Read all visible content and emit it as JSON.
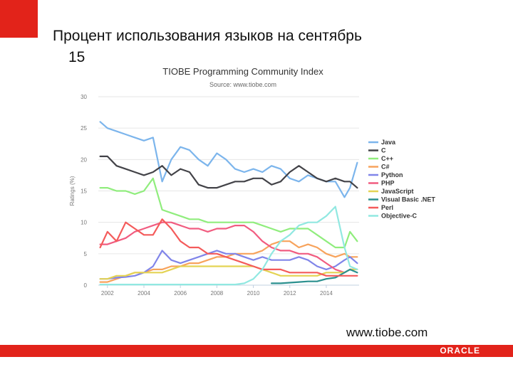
{
  "slide": {
    "title_line1": "Процент использования языков на сентябрь",
    "title_line2": "15",
    "source": "www.tiobe.com",
    "logo_text": "ORACLE"
  },
  "colors": {
    "brand_red": "#e2231a"
  },
  "chart_data": {
    "type": "line",
    "title": "TIOBE Programming Community Index",
    "subtitle": "Source: www.tiobe.com",
    "ylabel": "Ratings (%)",
    "xlabel": "",
    "ylim": [
      0,
      30
    ],
    "xlim": [
      2001.5,
      2015.8
    ],
    "y_ticks": [
      "0",
      "5",
      "10",
      "15",
      "20",
      "25",
      "30"
    ],
    "x_ticks": [
      "2002",
      "2004",
      "2006",
      "2008",
      "2010",
      "2012",
      "2014"
    ],
    "grid": true,
    "legend_position": "right",
    "series": [
      {
        "name": "Java",
        "color": "#7cb5ec",
        "x": [
          2001.6,
          2002,
          2002.5,
          2003,
          2003.5,
          2004,
          2004.5,
          2005,
          2005.5,
          2006,
          2006.5,
          2007,
          2007.5,
          2008,
          2008.5,
          2009,
          2009.5,
          2010,
          2010.5,
          2011,
          2011.5,
          2012,
          2012.5,
          2013,
          2013.5,
          2014,
          2014.5,
          2015,
          2015.3,
          2015.7
        ],
        "values": [
          26,
          25,
          24.5,
          24,
          23.5,
          23,
          23.5,
          16.5,
          20,
          22,
          21.5,
          20,
          19,
          21,
          20,
          18.5,
          18,
          18.5,
          18,
          19,
          18.5,
          17,
          16.5,
          17.5,
          17,
          16.5,
          16.5,
          14,
          15.5,
          19.5
        ]
      },
      {
        "name": "C",
        "color": "#434348",
        "x": [
          2001.6,
          2002,
          2002.5,
          2003,
          2003.5,
          2004,
          2004.5,
          2005,
          2005.5,
          2006,
          2006.5,
          2007,
          2007.5,
          2008,
          2008.5,
          2009,
          2009.5,
          2010,
          2010.5,
          2011,
          2011.5,
          2012,
          2012.5,
          2013,
          2013.5,
          2014,
          2014.5,
          2015,
          2015.3,
          2015.7
        ],
        "values": [
          20.5,
          20.5,
          19,
          18.5,
          18,
          17.5,
          18,
          19,
          17.5,
          18.5,
          18,
          16,
          15.5,
          15.5,
          16,
          16.5,
          16.5,
          17,
          17,
          16,
          16.5,
          18,
          19,
          18,
          17,
          16.5,
          17,
          16.5,
          16.5,
          15.5
        ]
      },
      {
        "name": "C++",
        "color": "#90ed7d",
        "x": [
          2001.6,
          2002,
          2002.5,
          2003,
          2003.5,
          2004,
          2004.5,
          2005,
          2005.5,
          2006,
          2006.5,
          2007,
          2007.5,
          2008,
          2008.5,
          2009,
          2009.5,
          2010,
          2010.5,
          2011,
          2011.5,
          2012,
          2012.5,
          2013,
          2013.5,
          2014,
          2014.5,
          2015,
          2015.3,
          2015.7
        ],
        "values": [
          15.5,
          15.5,
          15,
          15,
          14.5,
          15,
          17,
          12,
          11.5,
          11,
          10.5,
          10.5,
          10,
          10,
          10,
          10,
          10,
          10,
          9.5,
          9,
          8.5,
          9,
          9,
          9,
          8,
          7,
          6,
          6,
          8.5,
          7
        ]
      },
      {
        "name": "C#",
        "color": "#f7a35c",
        "x": [
          2001.6,
          2002,
          2002.5,
          2003,
          2003.5,
          2004,
          2004.5,
          2005,
          2005.5,
          2006,
          2006.5,
          2007,
          2007.5,
          2008,
          2008.5,
          2009,
          2009.5,
          2010,
          2010.5,
          2011,
          2011.5,
          2012,
          2012.5,
          2013,
          2013.5,
          2014,
          2014.5,
          2015,
          2015.3,
          2015.7
        ],
        "values": [
          0.5,
          0.5,
          1,
          1.5,
          2,
          2,
          2.5,
          2.5,
          3,
          3,
          3.5,
          3.5,
          4,
          4.5,
          4.5,
          5,
          5,
          5,
          5.5,
          6.5,
          7,
          7,
          6,
          6.5,
          6,
          5,
          4.5,
          5,
          4.5,
          4.5
        ]
      },
      {
        "name": "Python",
        "color": "#8085e9",
        "x": [
          2001.6,
          2002,
          2002.5,
          2003,
          2003.5,
          2004,
          2004.5,
          2005,
          2005.5,
          2006,
          2006.5,
          2007,
          2007.5,
          2008,
          2008.5,
          2009,
          2009.5,
          2010,
          2010.5,
          2011,
          2011.5,
          2012,
          2012.5,
          2013,
          2013.5,
          2014,
          2014.5,
          2015,
          2015.3,
          2015.7
        ],
        "values": [
          1,
          1,
          1.2,
          1.3,
          1.5,
          2,
          3,
          5.5,
          4,
          3.5,
          4,
          4.5,
          5,
          5.5,
          5,
          5,
          4.5,
          4,
          4.5,
          4,
          4,
          4,
          4.5,
          4,
          3,
          2.5,
          3,
          4,
          4.5,
          3.5
        ]
      },
      {
        "name": "PHP",
        "color": "#f15c80",
        "x": [
          2001.6,
          2002,
          2002.5,
          2003,
          2003.5,
          2004,
          2004.5,
          2005,
          2005.5,
          2006,
          2006.5,
          2007,
          2007.5,
          2008,
          2008.5,
          2009,
          2009.5,
          2010,
          2010.5,
          2011,
          2011.5,
          2012,
          2012.5,
          2013,
          2013.5,
          2014,
          2014.5,
          2015,
          2015.3,
          2015.7
        ],
        "values": [
          6.5,
          6.5,
          7,
          7.5,
          8.5,
          9,
          9.5,
          10,
          10,
          9.5,
          9,
          9,
          8.5,
          9,
          9,
          9.5,
          9.5,
          8.5,
          7,
          6,
          5.5,
          5.5,
          5,
          5,
          4.5,
          3.5,
          2.5,
          2,
          2.5,
          2.5
        ]
      },
      {
        "name": "JavaScript",
        "color": "#e4d354",
        "x": [
          2001.6,
          2002,
          2002.5,
          2003,
          2003.5,
          2004,
          2004.5,
          2005,
          2005.5,
          2006,
          2006.5,
          2007,
          2007.5,
          2008,
          2008.5,
          2009,
          2009.5,
          2010,
          2010.5,
          2011,
          2011.5,
          2012,
          2012.5,
          2013,
          2013.5,
          2014,
          2014.5,
          2015,
          2015.3,
          2015.7
        ],
        "values": [
          1,
          1,
          1.5,
          1.5,
          2,
          2,
          2,
          2,
          2.5,
          3,
          3,
          3,
          3,
          3,
          3,
          3,
          3,
          3,
          2.5,
          2,
          1.5,
          1.5,
          1.5,
          1.5,
          1.5,
          2,
          2,
          2,
          2.5,
          2.5
        ]
      },
      {
        "name": "Visual Basic .NET",
        "color": "#2b908f",
        "x": [
          2011,
          2011.5,
          2012,
          2012.5,
          2013,
          2013.5,
          2014,
          2014.5,
          2015,
          2015.3,
          2015.7
        ],
        "values": [
          0.3,
          0.3,
          0.4,
          0.5,
          0.6,
          0.6,
          1,
          1.2,
          2,
          2.5,
          2
        ]
      },
      {
        "name": "Perl",
        "color": "#f45b5b",
        "x": [
          2001.6,
          2002,
          2002.5,
          2003,
          2003.5,
          2004,
          2004.5,
          2005,
          2005.5,
          2006,
          2006.5,
          2007,
          2007.5,
          2008,
          2008.5,
          2009,
          2009.5,
          2010,
          2010.5,
          2011,
          2011.5,
          2012,
          2012.5,
          2013,
          2013.5,
          2014,
          2014.5,
          2015,
          2015.3,
          2015.7
        ],
        "values": [
          6,
          8.5,
          7,
          10,
          9,
          8,
          8,
          10.5,
          9,
          7,
          6,
          6,
          5,
          5,
          4.5,
          4,
          3.5,
          3,
          2.5,
          2.5,
          2.5,
          2,
          2,
          2,
          2,
          1.5,
          1.5,
          1.5,
          1.5,
          1.5
        ]
      },
      {
        "name": "Objective-C",
        "color": "#91e8e1",
        "x": [
          2001.6,
          2002,
          2003,
          2004,
          2005,
          2006,
          2007,
          2008,
          2009,
          2009.5,
          2010,
          2010.5,
          2011,
          2011.5,
          2012,
          2012.5,
          2013,
          2013.5,
          2014,
          2014.5,
          2015,
          2015.3,
          2015.7
        ],
        "values": [
          0.1,
          0.1,
          0.1,
          0.1,
          0.1,
          0.1,
          0.1,
          0.1,
          0.1,
          0.3,
          1,
          2.5,
          5,
          7,
          8,
          9.5,
          10,
          10,
          11,
          12.5,
          6,
          3,
          2.5
        ]
      }
    ]
  }
}
